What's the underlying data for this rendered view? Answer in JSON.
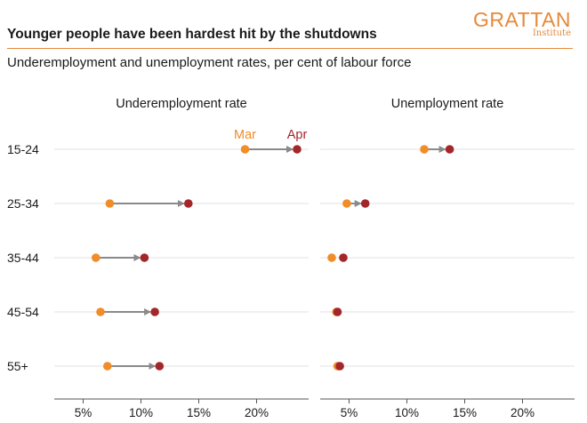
{
  "header": {
    "title": "Younger people have been hardest hit by the shutdowns",
    "subtitle": "Underemployment and unemployment rates, per cent of labour force",
    "logo_word": "GRATTAN",
    "logo_sub": "Institute"
  },
  "colors": {
    "mar": "#F28C28",
    "apr": "#A3262A",
    "arrow": "#8A8A8A",
    "grid": "#E2E2E2",
    "accent": "#E58A3A"
  },
  "chart_data": [
    {
      "type": "dumbbell",
      "title": "Underemployment rate",
      "categories": [
        "15-24",
        "25-34",
        "35-44",
        "45-54",
        "55+"
      ],
      "series": [
        {
          "name": "Mar",
          "values": [
            19.0,
            7.3,
            6.1,
            6.5,
            7.1
          ]
        },
        {
          "name": "Apr",
          "values": [
            23.5,
            14.1,
            10.3,
            11.2,
            11.6
          ]
        }
      ],
      "xticks": [
        5,
        10,
        15,
        20
      ],
      "xtick_labels": [
        "5%",
        "10%",
        "15%",
        "20%"
      ],
      "xlim": [
        2.5,
        24.5
      ]
    },
    {
      "type": "dumbbell",
      "title": "Unemployment rate",
      "categories": [
        "15-24",
        "25-34",
        "35-44",
        "45-54",
        "55+"
      ],
      "series": [
        {
          "name": "Mar",
          "values": [
            11.5,
            4.8,
            3.5,
            3.9,
            4.0
          ]
        },
        {
          "name": "Apr",
          "values": [
            13.7,
            6.4,
            4.5,
            4.0,
            4.2
          ]
        }
      ],
      "xticks": [
        5,
        10,
        15,
        20
      ],
      "xtick_labels": [
        "5%",
        "10%",
        "15%",
        "20%"
      ],
      "xlim": [
        2.5,
        24.5
      ]
    }
  ],
  "legend": {
    "mar_label": "Mar",
    "apr_label": "Apr"
  }
}
